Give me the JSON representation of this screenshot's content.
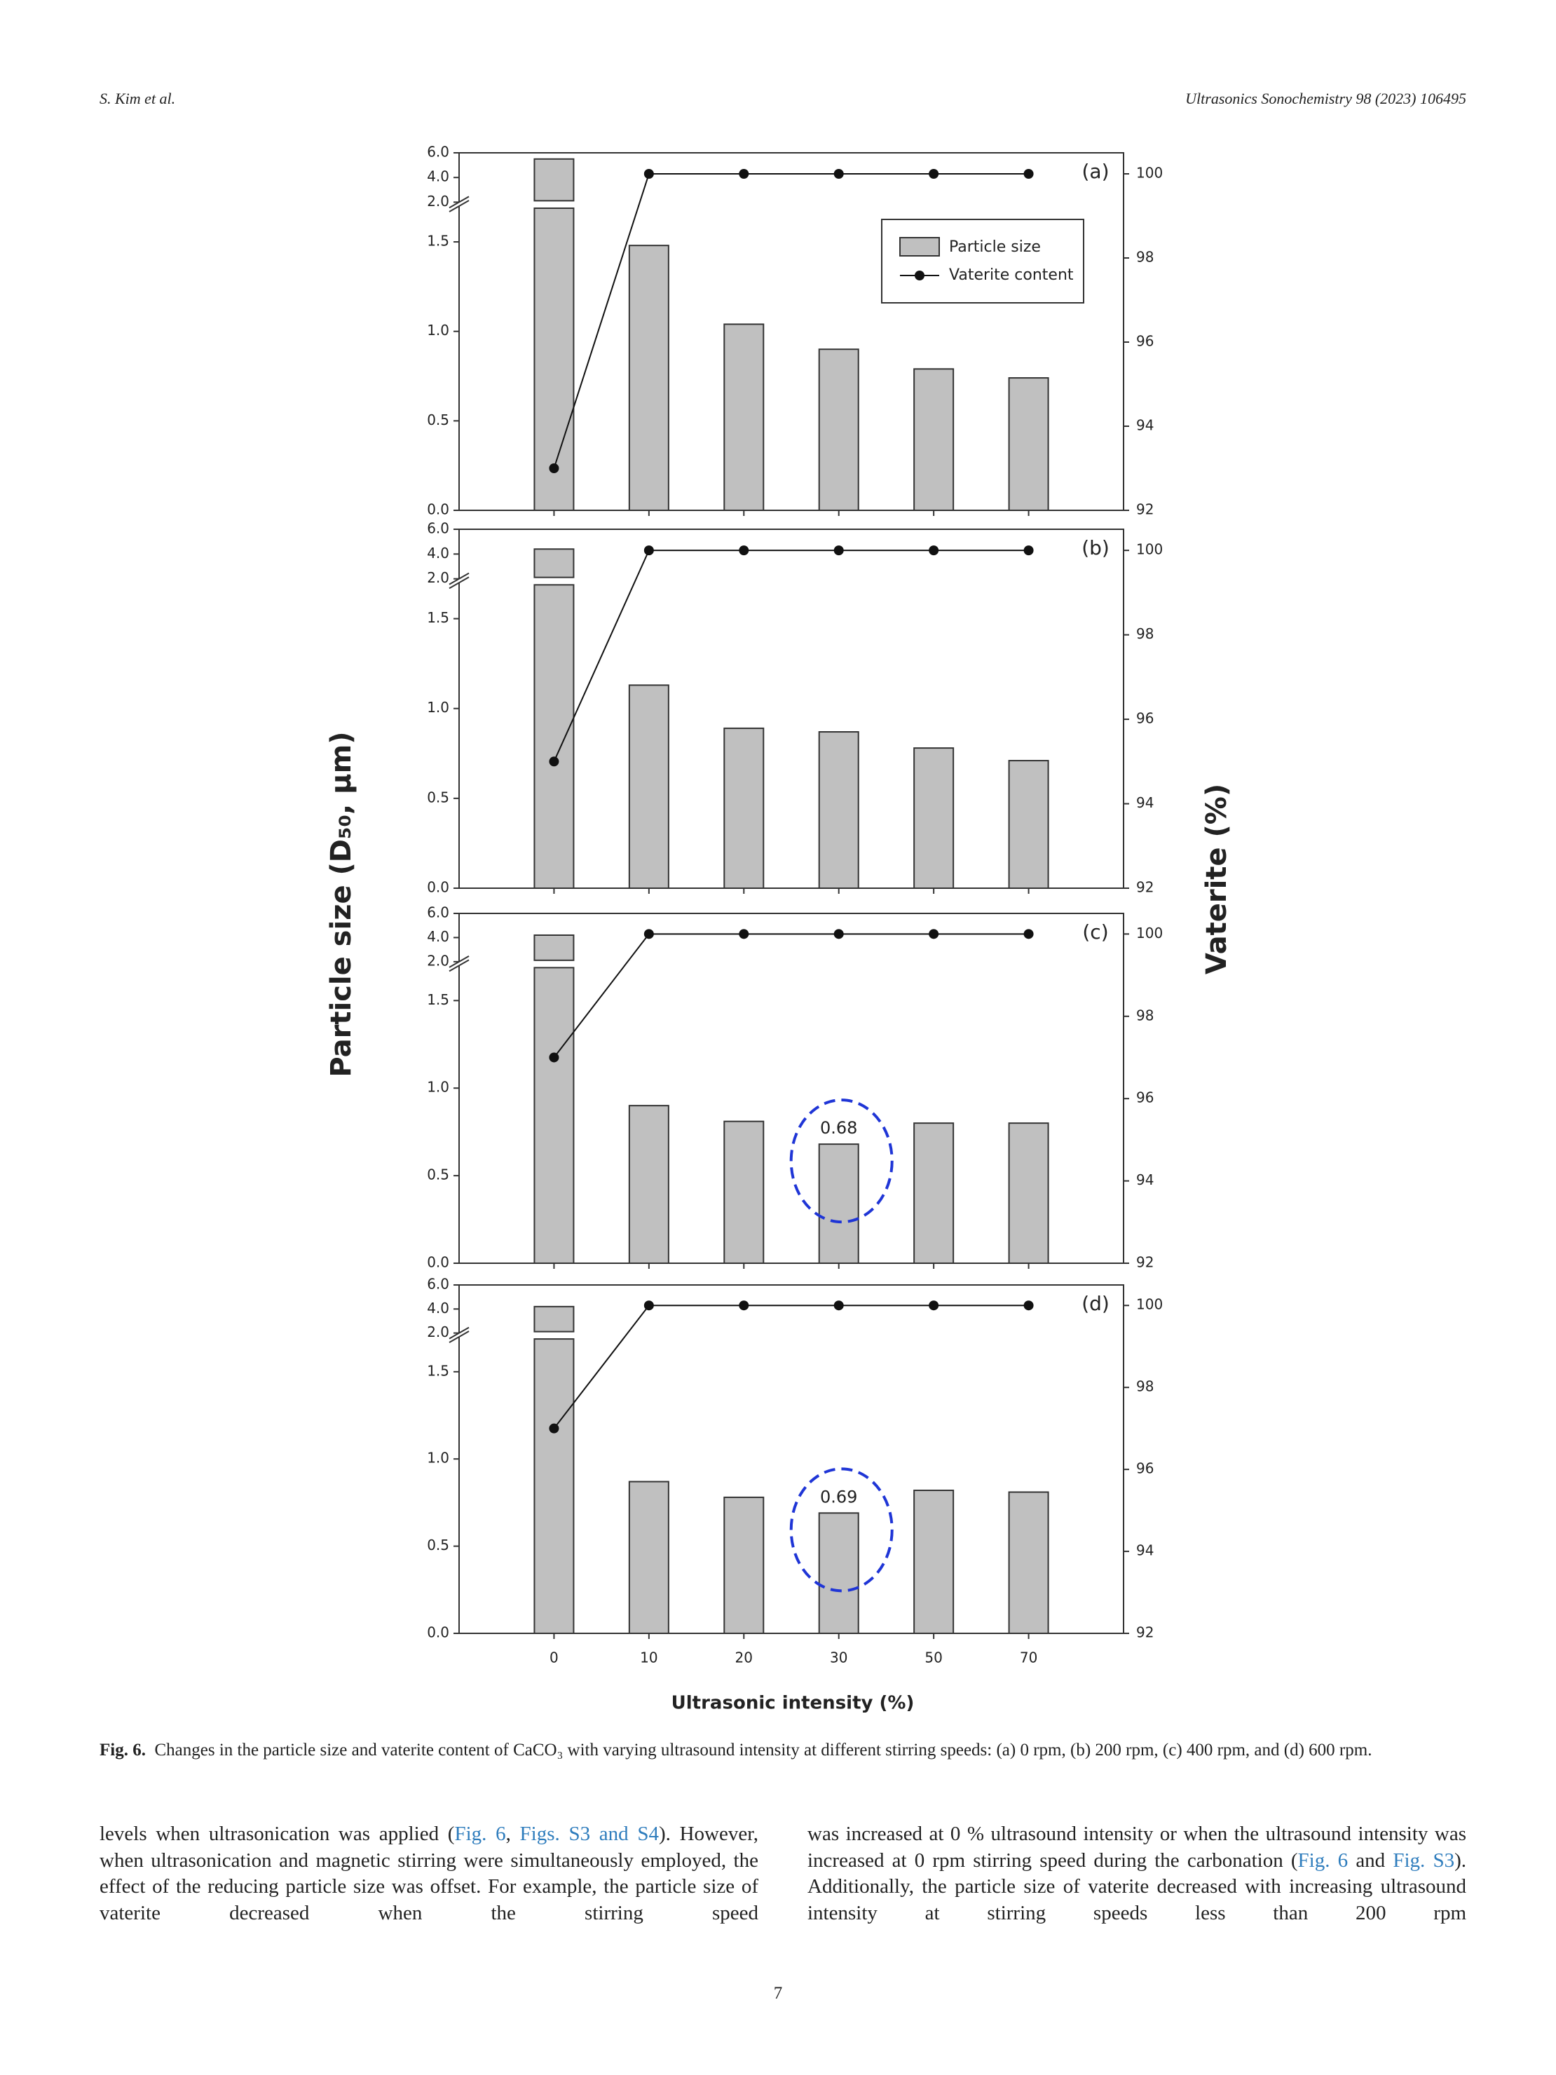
{
  "header": {
    "left": "S. Kim et al.",
    "right": "Ultrasonics Sonochemistry 98 (2023) 106495"
  },
  "figure": {
    "y_label": "Particle size (D₅₀, μm)",
    "y2_label": "Vaterite (%)",
    "x_label": "Ultrasonic intensity (%)"
  },
  "chart_data": [
    {
      "type": "bar_line",
      "label": "(a)",
      "legend": "upper right",
      "categories": [
        null,
        null,
        null,
        null,
        null,
        null
      ],
      "series": [
        {
          "name": "Particle size",
          "color": "#c0c0c0",
          "values": [
            5.5,
            1.48,
            1.04,
            0.9,
            0.79,
            0.74
          ]
        },
        {
          "name": "Vaterite content",
          "color": "#111111",
          "axis": "y2",
          "values": [
            93,
            100,
            100,
            100,
            100,
            100
          ]
        }
      ],
      "ylim": [
        0,
        6
      ],
      "ybreak": [
        1.7,
        2
      ],
      "yticks": [
        {
          "value": 0,
          "label": "0.0"
        },
        {
          "value": 0.5,
          "label": "0.5"
        },
        {
          "value": 1,
          "label": "1.0"
        },
        {
          "value": 1.5,
          "label": "1.5"
        },
        {
          "value": 2,
          "label": "2.0"
        },
        {
          "value": 4,
          "label": "4.0"
        },
        {
          "value": 6,
          "label": "6.0"
        }
      ],
      "y2lim": [
        92,
        100.5
      ],
      "y2ticks": [
        92,
        94,
        96,
        98,
        100
      ]
    },
    {
      "type": "bar_line",
      "label": "(b)",
      "categories": [
        null,
        null,
        null,
        null,
        null,
        null
      ],
      "series": [
        {
          "color": "#c0c0c0",
          "values": [
            4.4,
            1.13,
            0.89,
            0.87,
            0.78,
            0.71
          ]
        },
        {
          "color": "#111111",
          "axis": "y2",
          "values": [
            95,
            100,
            100,
            100,
            100,
            100
          ]
        }
      ],
      "ylim": [
        0,
        6
      ],
      "ybreak": [
        1.7,
        2
      ],
      "yticks": [
        {
          "value": 0,
          "label": "0.0"
        },
        {
          "value": 0.5,
          "label": "0.5"
        },
        {
          "value": 1,
          "label": "1.0"
        },
        {
          "value": 1.5,
          "label": "1.5"
        },
        {
          "value": 2,
          "label": "2.0"
        },
        {
          "value": 4,
          "label": "4.0"
        },
        {
          "value": 6,
          "label": "6.0"
        }
      ],
      "y2lim": [
        92,
        100.5
      ],
      "y2ticks": [
        92,
        94,
        96,
        98,
        100
      ]
    },
    {
      "type": "bar_line",
      "label": "(c)",
      "categories": [
        null,
        null,
        null,
        null,
        null,
        null
      ],
      "series": [
        {
          "color": "#c0c0c0",
          "values": [
            4.2,
            0.9,
            0.81,
            0.68,
            0.8,
            0.8
          ],
          "value_labels": [
            null,
            null,
            null,
            "0.68",
            null,
            null
          ]
        },
        {
          "color": "#111111",
          "axis": "y2",
          "values": [
            97,
            100,
            100,
            100,
            100,
            100
          ]
        }
      ],
      "ylim": [
        0,
        6
      ],
      "ybreak": [
        1.7,
        2
      ],
      "yticks": [
        {
          "value": 0,
          "label": "0.0"
        },
        {
          "value": 0.5,
          "label": "0.5"
        },
        {
          "value": 1,
          "label": "1.0"
        },
        {
          "value": 1.5,
          "label": "1.5"
        },
        {
          "value": 2,
          "label": "2.0"
        },
        {
          "value": 4,
          "label": "4.0"
        },
        {
          "value": 6,
          "label": "6.0"
        }
      ],
      "y2lim": [
        92,
        100.5
      ],
      "y2ticks": [
        92,
        94,
        96,
        98,
        100
      ]
    },
    {
      "type": "bar_line",
      "label": "(d)",
      "categories": [
        "0",
        "10",
        "20",
        "30",
        "50",
        "70"
      ],
      "series": [
        {
          "color": "#c0c0c0",
          "values": [
            4.2,
            0.87,
            0.78,
            0.69,
            0.82,
            0.81
          ],
          "value_labels": [
            null,
            null,
            null,
            "0.69",
            null,
            null
          ]
        },
        {
          "color": "#111111",
          "axis": "y2",
          "values": [
            97,
            100,
            100,
            100,
            100,
            100
          ]
        }
      ],
      "ylim": [
        0,
        6
      ],
      "ybreak": [
        1.7,
        2
      ],
      "yticks": [
        {
          "value": 0,
          "label": "0.0"
        },
        {
          "value": 0.5,
          "label": "0.5"
        },
        {
          "value": 1,
          "label": "1.0"
        },
        {
          "value": 1.5,
          "label": "1.5"
        },
        {
          "value": 2,
          "label": "2.0"
        },
        {
          "value": 4,
          "label": "4.0"
        },
        {
          "value": 6,
          "label": "6.0"
        }
      ],
      "y2lim": [
        92,
        100.5
      ],
      "y2ticks": [
        92,
        94,
        96,
        98,
        100
      ]
    }
  ],
  "caption": {
    "label": "Fig. 6.",
    "text": "Changes in the particle size and vaterite content of CaCO₃ with varying ultrasound intensity at different stirring speeds: (a) 0 rpm, (b) 200 rpm, (c) 400 rpm, and (d) 600 rpm."
  },
  "body": {
    "left": [
      {
        "text": "levels when ultrasonication was applied ("
      },
      {
        "text": "Fig. 6",
        "link": true
      },
      {
        "text": ", "
      },
      {
        "text": "Figs. S3 and S4",
        "link": true
      },
      {
        "text": "). However, when ultrasonication and magnetic stirring were simultaneously employed, the effect of the reducing particle size was offset. For example, the particle size of vaterite decreased when the stirring speed"
      }
    ],
    "right": [
      {
        "text": "was increased at 0 % ultrasound intensity or when the ultrasound intensity was increased at 0 rpm stirring speed during the carbonation ("
      },
      {
        "text": "Fig. 6",
        "link": true
      },
      {
        "text": " and "
      },
      {
        "text": "Fig. S3",
        "link": true
      },
      {
        "text": "). Additionally, the particle size of vaterite decreased with increasing ultrasound intensity at stirring speeds less than 200 rpm"
      }
    ]
  },
  "page_number": "7"
}
